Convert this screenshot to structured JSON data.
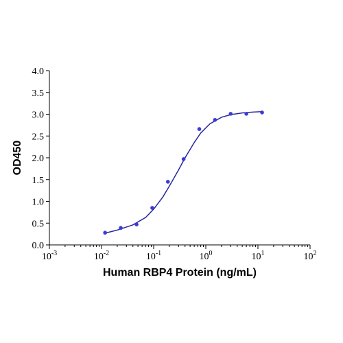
{
  "chart_data": {
    "type": "scatter-fit",
    "x_label": "Human RBP4 Protein (ng/mL)",
    "y_label": "OD450",
    "x_scale": "log",
    "x": [
      0.0117,
      0.0234,
      0.047,
      0.094,
      0.1875,
      0.375,
      0.75,
      1.5,
      3,
      6,
      12
    ],
    "values": [
      0.28,
      0.39,
      0.47,
      0.85,
      1.45,
      1.97,
      2.66,
      2.87,
      3.01,
      3.01,
      3.04
    ],
    "color": "#3a3ad8",
    "curve": {
      "x": [
        0.0117,
        0.02,
        0.04,
        0.07,
        0.1,
        0.15,
        0.2,
        0.3,
        0.4,
        0.6,
        0.8,
        1.2,
        2,
        3,
        5,
        8,
        12
      ],
      "values": [
        0.27,
        0.34,
        0.46,
        0.63,
        0.82,
        1.1,
        1.35,
        1.72,
        2.0,
        2.35,
        2.57,
        2.78,
        2.93,
        2.99,
        3.03,
        3.05,
        3.06
      ],
      "color": "#26269c"
    },
    "xlim": [
      0.001,
      100
    ],
    "xticks": [
      {
        "value": 0.001,
        "label": "10",
        "exponent": "-3"
      },
      {
        "value": 0.01,
        "label": "10",
        "exponent": "-2"
      },
      {
        "value": 0.1,
        "label": "10",
        "exponent": "-1"
      },
      {
        "value": 1,
        "label": "10",
        "exponent": "0"
      },
      {
        "value": 10,
        "label": "10",
        "exponent": "1"
      },
      {
        "value": 100,
        "label": "10",
        "exponent": "2"
      }
    ],
    "ylim": [
      0,
      4
    ],
    "yticks": [
      {
        "value": 0,
        "label": "0.0"
      },
      {
        "value": 0.5,
        "label": "0.5"
      },
      {
        "value": 1,
        "label": "1.0"
      },
      {
        "value": 1.5,
        "label": "1.5"
      },
      {
        "value": 2,
        "label": "2.0"
      },
      {
        "value": 2.5,
        "label": "2.5"
      },
      {
        "value": 3,
        "label": "3.0"
      },
      {
        "value": 3.5,
        "label": "3.5"
      },
      {
        "value": 4,
        "label": "4.0"
      }
    ]
  }
}
